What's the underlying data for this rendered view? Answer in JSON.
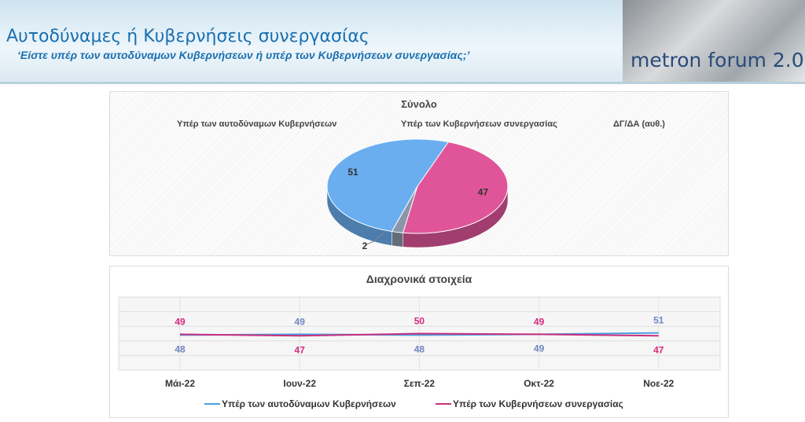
{
  "header": {
    "title": "Αυτοδύναμες ή Κυβερνήσεις συνεργασίας",
    "subtitle": "‘Είστε υπέρ των αυτοδύναμων Κυβερνήσεων ή υπέρ των Κυβερνήσεων συνεργασίας;’",
    "logo_text": "metron forum 2.0"
  },
  "chart_data": [
    {
      "type": "pie",
      "title": "Σύνολο",
      "legend": "top",
      "slices": [
        {
          "name": "Υπέρ των Κυβερνήσεων συνεργασίας",
          "value": 47,
          "color": "#e0559a"
        },
        {
          "name": "ΔΓ/ΔΑ (αυθ.)",
          "value": 2,
          "color": "#8a96a8"
        },
        {
          "name": "Υπέρ των αυτοδύναμων Κυβερνήσεων",
          "value": 51,
          "color": "#6aaef0"
        }
      ],
      "legend_entries": [
        "Υπέρ των αυτοδύναμων Κυβερνήσεων",
        "Υπέρ των Κυβερνήσεων συνεργασίας",
        "ΔΓ/ΔΑ (αυθ.)"
      ]
    },
    {
      "type": "line",
      "title": "Διαχρονικά στοιχεία",
      "categories": [
        "Μάι-22",
        "Ιουν-22",
        "Σεπ-22",
        "Οκτ-22",
        "Νοε-22"
      ],
      "ylim": [
        0,
        100
      ],
      "grid": true,
      "legend": "bottom",
      "series": [
        {
          "name": "Υπέρ των αυτοδύναμων Κυβερνήσεων",
          "values": [
            48,
            49,
            48,
            49,
            51
          ],
          "color": "#4aa0e0",
          "label_color": "#6f86c0"
        },
        {
          "name": "Υπέρ των Κυβερνήσεων συνεργασίας",
          "values": [
            49,
            47,
            50,
            49,
            47
          ],
          "color": "#c8307e",
          "label_color": "#d8287e"
        }
      ]
    }
  ]
}
